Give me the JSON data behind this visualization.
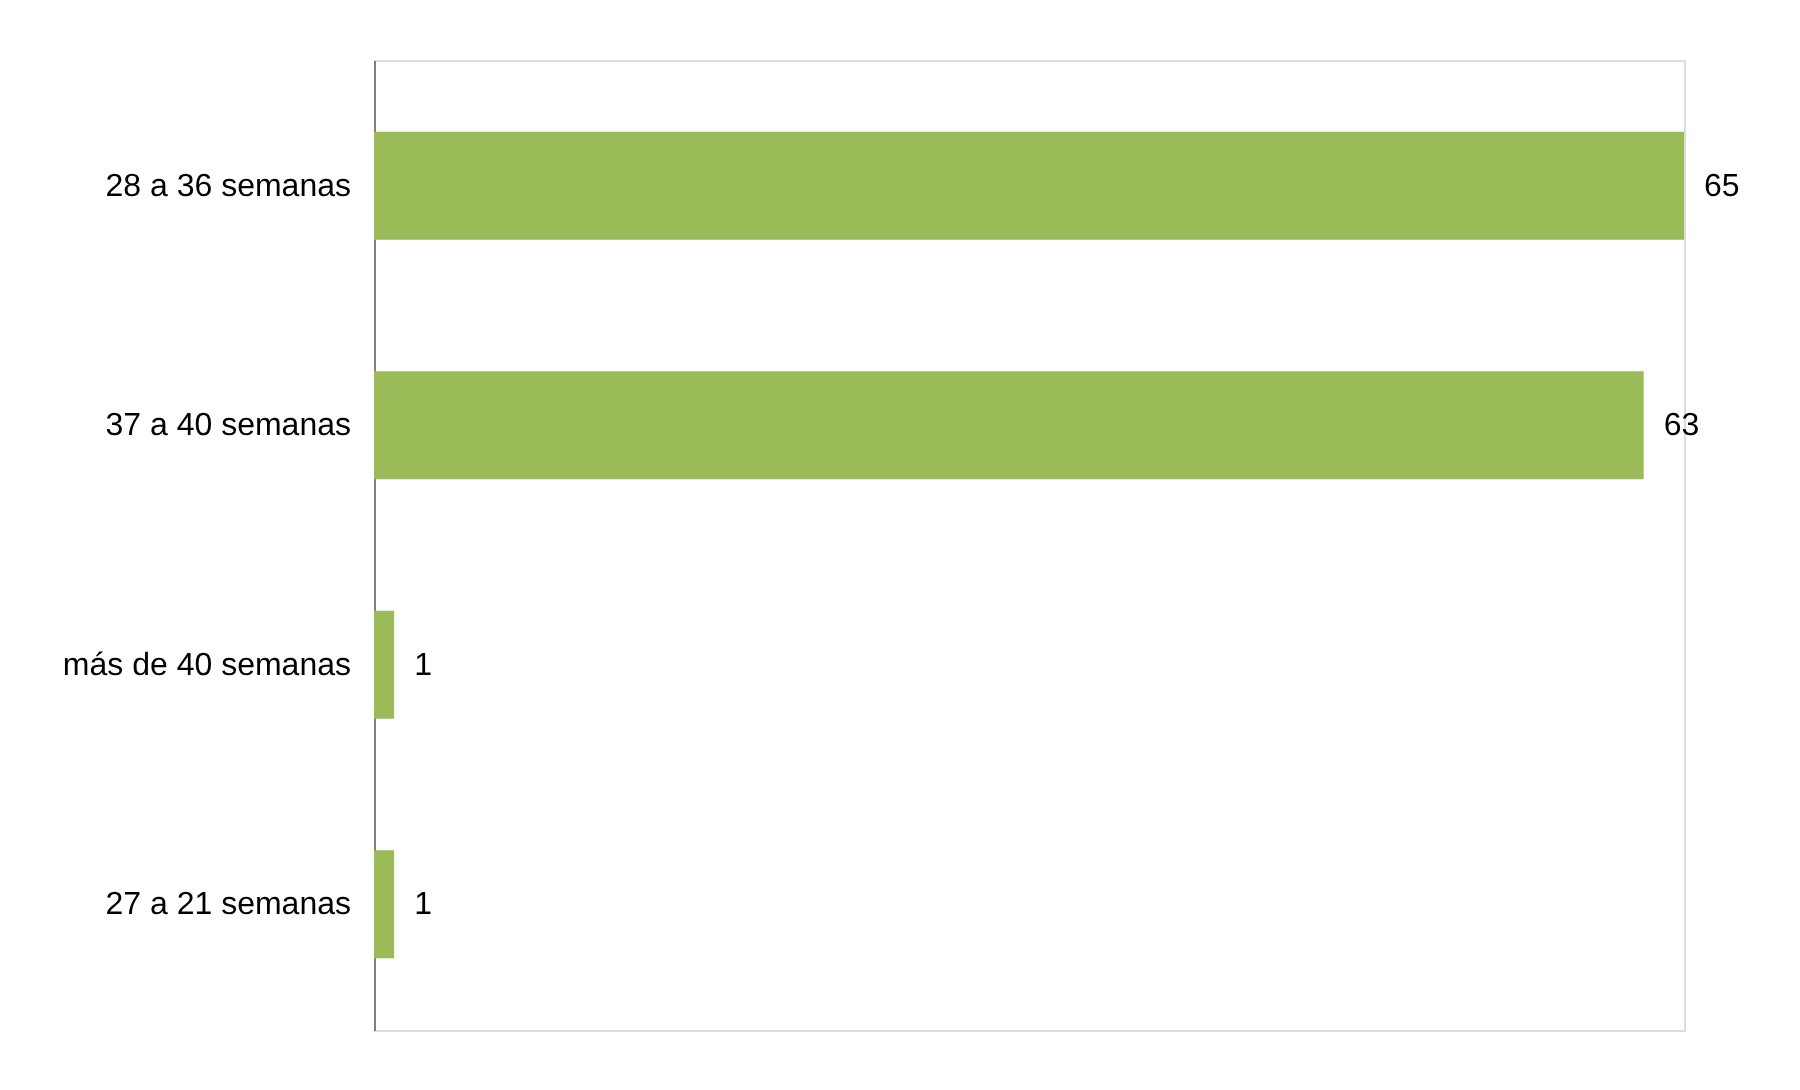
{
  "chart_data": {
    "type": "bar",
    "orientation": "horizontal",
    "categories": [
      "28 a 36 semanas",
      "37 a 40 semanas",
      "más de 40 semanas",
      "27 a 21 semanas"
    ],
    "values": [
      65,
      63,
      1,
      1
    ],
    "color": "#9bbb59",
    "data_labels": true,
    "grid": false
  }
}
